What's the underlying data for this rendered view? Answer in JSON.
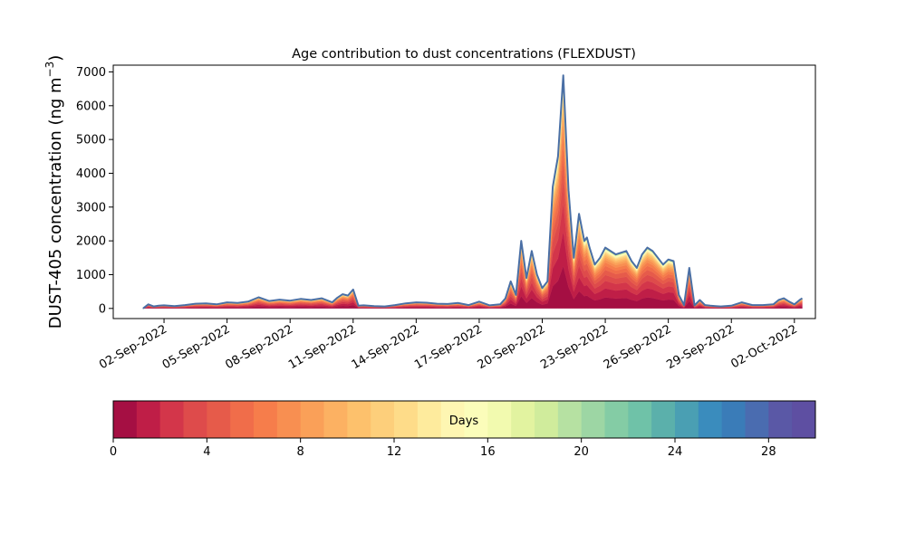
{
  "chart_data": {
    "type": "area",
    "title": "Age contribution to dust concentrations (FLEXDUST)",
    "ylabel_main": "DUST-405 concentration (ng m",
    "ylabel_sup": "−3",
    "ylabel_close": ")",
    "ylim": [
      -300,
      7200
    ],
    "xlim": [
      "2022-08-30T14:00",
      "2022-10-03T00:00"
    ],
    "yticks": [
      0,
      1000,
      2000,
      3000,
      4000,
      5000,
      6000,
      7000
    ],
    "xticks": [
      "02-Sep-2022",
      "05-Sep-2022",
      "08-Sep-2022",
      "11-Sep-2022",
      "14-Sep-2022",
      "17-Sep-2022",
      "20-Sep-2022",
      "23-Sep-2022",
      "26-Sep-2022",
      "29-Sep-2022",
      "02-Oct-2022"
    ],
    "xtick_dates": [
      "2022-09-02",
      "2022-09-05",
      "2022-09-08",
      "2022-09-11",
      "2022-09-14",
      "2022-09-17",
      "2022-09-20",
      "2022-09-23",
      "2022-09-26",
      "2022-09-29",
      "2022-10-02"
    ],
    "legend": "colorbar-bottom",
    "total_line_color": "#4a6fa5",
    "total_series": {
      "name": "",
      "x": [
        "2022-09-01T00:00",
        "2022-09-01T06:00",
        "2022-09-01T12:00",
        "2022-09-01T18:00",
        "2022-09-02T00:00",
        "2022-09-02T12:00",
        "2022-09-03T00:00",
        "2022-09-03T12:00",
        "2022-09-04T00:00",
        "2022-09-04T12:00",
        "2022-09-05T00:00",
        "2022-09-05T12:00",
        "2022-09-06T00:00",
        "2022-09-06T12:00",
        "2022-09-07T00:00",
        "2022-09-07T12:00",
        "2022-09-08T00:00",
        "2022-09-08T12:00",
        "2022-09-09T00:00",
        "2022-09-09T12:00",
        "2022-09-10T00:00",
        "2022-09-10T06:00",
        "2022-09-10T12:00",
        "2022-09-10T18:00",
        "2022-09-11T00:00",
        "2022-09-11T06:00",
        "2022-09-11T12:00",
        "2022-09-12T00:00",
        "2022-09-12T12:00",
        "2022-09-13T00:00",
        "2022-09-13T12:00",
        "2022-09-14T00:00",
        "2022-09-14T12:00",
        "2022-09-15T00:00",
        "2022-09-15T12:00",
        "2022-09-16T00:00",
        "2022-09-16T12:00",
        "2022-09-17T00:00",
        "2022-09-17T12:00",
        "2022-09-18T00:00",
        "2022-09-18T06:00",
        "2022-09-18T12:00",
        "2022-09-18T18:00",
        "2022-09-19T00:00",
        "2022-09-19T06:00",
        "2022-09-19T12:00",
        "2022-09-19T18:00",
        "2022-09-20T00:00",
        "2022-09-20T06:00",
        "2022-09-20T12:00",
        "2022-09-20T18:00",
        "2022-09-21T00:00",
        "2022-09-21T06:00",
        "2022-09-21T09:00",
        "2022-09-21T12:00",
        "2022-09-21T18:00",
        "2022-09-22T00:00",
        "2022-09-22T03:00",
        "2022-09-22T06:00",
        "2022-09-22T12:00",
        "2022-09-22T18:00",
        "2022-09-23T00:00",
        "2022-09-23T12:00",
        "2022-09-24T00:00",
        "2022-09-24T06:00",
        "2022-09-24T12:00",
        "2022-09-24T18:00",
        "2022-09-25T00:00",
        "2022-09-25T06:00",
        "2022-09-25T12:00",
        "2022-09-25T18:00",
        "2022-09-26T00:00",
        "2022-09-26T06:00",
        "2022-09-26T12:00",
        "2022-09-26T18:00",
        "2022-09-27T00:00",
        "2022-09-27T06:00",
        "2022-09-27T12:00",
        "2022-09-27T18:00",
        "2022-09-28T00:00",
        "2022-09-28T06:00",
        "2022-09-28T12:00",
        "2022-09-29T00:00",
        "2022-09-29T12:00",
        "2022-09-30T00:00",
        "2022-09-30T12:00",
        "2022-10-01T00:00",
        "2022-10-01T06:00",
        "2022-10-01T12:00",
        "2022-10-01T18:00",
        "2022-10-02T00:00",
        "2022-10-02T06:00",
        "2022-10-02T09:00"
      ],
      "y": [
        0,
        120,
        60,
        80,
        90,
        70,
        100,
        140,
        150,
        120,
        180,
        160,
        200,
        330,
        220,
        260,
        230,
        280,
        250,
        300,
        180,
        320,
        420,
        380,
        560,
        80,
        90,
        70,
        60,
        100,
        150,
        180,
        170,
        140,
        130,
        160,
        100,
        200,
        90,
        120,
        300,
        800,
        400,
        2000,
        900,
        1700,
        1000,
        600,
        800,
        3600,
        4500,
        6900,
        3500,
        2500,
        1500,
        2800,
        2000,
        2100,
        1800,
        1300,
        1500,
        1800,
        1600,
        1700,
        1400,
        1200,
        1600,
        1800,
        1700,
        1500,
        1300,
        1450,
        1400,
        400,
        100,
        1200,
        90,
        250,
        100,
        80,
        70,
        60,
        80,
        180,
        100,
        100,
        120,
        250,
        300,
        200,
        120,
        250,
        300
      ]
    },
    "age_groups": {
      "min_days": 0,
      "max_days": 30,
      "colorbar_ticks": [
        0,
        4,
        8,
        12,
        16,
        20,
        24,
        28
      ],
      "colorbar_label": "Days",
      "colors": [
        "#a50f43",
        "#bf1e47",
        "#d3364a",
        "#de4b4b",
        "#e65b4a",
        "#f06d4a",
        "#f67d4b",
        "#f88f51",
        "#faa058",
        "#fcb162",
        "#fdc16c",
        "#fdcf7b",
        "#fedc89",
        "#feeb9d",
        "#fef6b2",
        "#fbfdba",
        "#f2faaf",
        "#e2f3a0",
        "#d0ec9c",
        "#b6e1a2",
        "#9dd6a4",
        "#84cca5",
        "#6fc2a8",
        "#5bb0ab",
        "#4a9fb3",
        "#3a8cbd",
        "#3a7cb8",
        "#4a6cb0",
        "#5a58a6",
        "#5e4fa2"
      ]
    }
  }
}
